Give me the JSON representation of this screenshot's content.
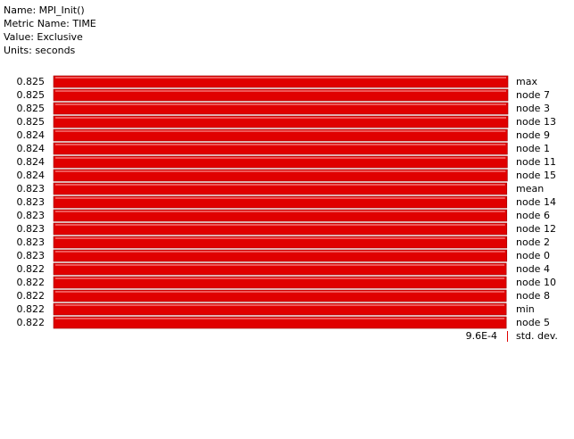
{
  "header": {
    "name": "Name: MPI_Init()",
    "metric": "Metric Name: TIME",
    "value": "Value: Exclusive",
    "units": "Units: seconds"
  },
  "chart_data": {
    "type": "bar",
    "orientation": "horizontal",
    "bar_color": "#e00000",
    "bar_highlight_color": "#ffb0b0",
    "bar_border_color": "#9a0000",
    "grid": false,
    "categories": [
      "max",
      "node 7",
      "node 3",
      "node 13",
      "node 9",
      "node 1",
      "node 11",
      "node 15",
      "mean",
      "node 14",
      "node 6",
      "node 12",
      "node 2",
      "node 0",
      "node 4",
      "node 10",
      "node 8",
      "min",
      "node 5"
    ],
    "values": [
      0.825,
      0.825,
      0.825,
      0.825,
      0.824,
      0.824,
      0.824,
      0.824,
      0.823,
      0.823,
      0.823,
      0.823,
      0.823,
      0.823,
      0.822,
      0.822,
      0.822,
      0.822,
      0.822
    ],
    "value_labels": [
      "0.825",
      "0.825",
      "0.825",
      "0.825",
      "0.824",
      "0.824",
      "0.824",
      "0.824",
      "0.823",
      "0.823",
      "0.823",
      "0.823",
      "0.823",
      "0.823",
      "0.822",
      "0.822",
      "0.822",
      "0.822",
      "0.822"
    ],
    "std_dev": {
      "label": "std. dev.",
      "value": 0.00096,
      "value_label": "9.6E-4"
    }
  }
}
